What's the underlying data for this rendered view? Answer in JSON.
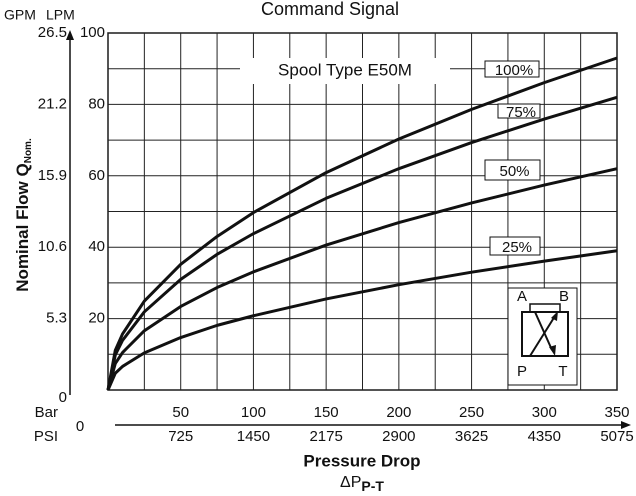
{
  "chart_data": {
    "type": "line",
    "title": "Command Signal",
    "annotation": "Spool Type E50M",
    "y_label": "Nominal Flow Q",
    "y_label_sub": "Nom.",
    "y_unit": "LPM",
    "y2_unit": "GPM",
    "x_label": "Pressure Drop",
    "x_label2": "ΔP",
    "x_label2_sub": "P-T",
    "x_unit": "Bar",
    "x2_unit": "PSI",
    "symbol_labels": [
      "A",
      "B",
      "P",
      "T"
    ],
    "x": [
      0,
      5,
      10,
      25,
      50,
      75,
      100,
      150,
      200,
      250,
      300,
      350
    ],
    "series": [
      {
        "name": "100%",
        "color": "#111111",
        "values": [
          0,
          11.1,
          15.7,
          24.9,
          35.2,
          43.0,
          49.7,
          60.9,
          70.3,
          78.6,
          86.1,
          93
        ]
      },
      {
        "name": "75%",
        "color": "#111111",
        "values": [
          0,
          9.8,
          13.9,
          21.9,
          31.0,
          38.0,
          43.8,
          53.7,
          62.0,
          69.3,
          75.9,
          82
        ]
      },
      {
        "name": "50%",
        "color": "#111111",
        "values": [
          0,
          7.4,
          10.5,
          16.6,
          23.4,
          28.7,
          33.1,
          40.6,
          46.9,
          52.4,
          57.4,
          62
        ]
      },
      {
        "name": "25%",
        "color": "#111111",
        "values": [
          0,
          4.7,
          6.6,
          10.4,
          14.7,
          18.1,
          20.8,
          25.5,
          29.5,
          33.0,
          36.1,
          39
        ]
      }
    ],
    "xlim": [
      0,
      350
    ],
    "xticks": [
      50,
      100,
      150,
      200,
      250,
      300,
      350
    ],
    "x2lim": [
      0,
      5075
    ],
    "x2ticks": [
      0,
      725,
      1450,
      2175,
      2900,
      3625,
      4350,
      5075
    ],
    "ylim": [
      0,
      100
    ],
    "yticks": [
      20,
      40,
      60,
      80,
      100
    ],
    "y2lim": [
      0,
      26.5
    ],
    "y2ticks": [
      0,
      5.3,
      10.6,
      15.9,
      21.2,
      26.5
    ],
    "xgrid": [
      0,
      25,
      50,
      75,
      100,
      125,
      150,
      175,
      200,
      225,
      250,
      275,
      300,
      325,
      350
    ],
    "ygrid": [
      0,
      10,
      20,
      30,
      40,
      50,
      60,
      70,
      80,
      90,
      100
    ]
  }
}
